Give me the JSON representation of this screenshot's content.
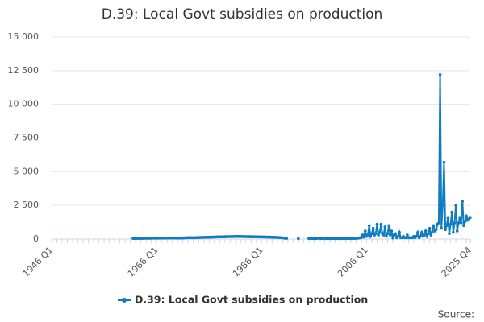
{
  "chart_data": {
    "type": "line",
    "title": "D.39: Local Govt subsidies on production",
    "source": "Source:",
    "categories": [
      "1946 Q1",
      null,
      null,
      null,
      null,
      null,
      null,
      null,
      null,
      null,
      null,
      null,
      null,
      null,
      null,
      null,
      null,
      null,
      null,
      null,
      null,
      null,
      null,
      null,
      null,
      null,
      null,
      null,
      null,
      null,
      null,
      null,
      null,
      null,
      null,
      null,
      null,
      null,
      null,
      null,
      null,
      null,
      null,
      null,
      null,
      null,
      null,
      null,
      null,
      null,
      null,
      null,
      null,
      null,
      null,
      null,
      null,
      null,
      null,
      null,
      null,
      null,
      null,
      null,
      null,
      null,
      null,
      null,
      null,
      null,
      null,
      null,
      null,
      null,
      null,
      null,
      null,
      null,
      null,
      null,
      "1966 Q1",
      null,
      null,
      null,
      null,
      null,
      null,
      null,
      null,
      null,
      null,
      null,
      null,
      null,
      null,
      null,
      null,
      null,
      null,
      null,
      null,
      null,
      null,
      null,
      null,
      null,
      null,
      null,
      null,
      null,
      null,
      null,
      null,
      null,
      null,
      null,
      null,
      null,
      null,
      null,
      null,
      null,
      null,
      null,
      null,
      null,
      null,
      null,
      null,
      null,
      null,
      null,
      null,
      null,
      null,
      null,
      null,
      null,
      null,
      null,
      null,
      null,
      null,
      null,
      null,
      null,
      null,
      null,
      null,
      null,
      null,
      null,
      null,
      null,
      null,
      null,
      null,
      null,
      null,
      null,
      "1986 Q1",
      null,
      null,
      null,
      null,
      null,
      null,
      null,
      null,
      null,
      null,
      null,
      null,
      null,
      null,
      null,
      null,
      null,
      null,
      null,
      null,
      null,
      null,
      null,
      null,
      null,
      null,
      null,
      null,
      null,
      null,
      null,
      null,
      null,
      null,
      null,
      null,
      null,
      null,
      null,
      null,
      null,
      null,
      null,
      null,
      null,
      null,
      null,
      null,
      null,
      null,
      null,
      null,
      null,
      null,
      null,
      null,
      null,
      null,
      null,
      null,
      null,
      null,
      null,
      null,
      null,
      null,
      null,
      null,
      null,
      null,
      null,
      null,
      null,
      null,
      null,
      null,
      null,
      null,
      null,
      "2006 Q1",
      null,
      null,
      null,
      null,
      null,
      null,
      null,
      null,
      null,
      null,
      null,
      null,
      null,
      null,
      null,
      null,
      null,
      null,
      null,
      null,
      null,
      null,
      null,
      null,
      null,
      null,
      null,
      null,
      null,
      null,
      null,
      null,
      null,
      null,
      null,
      null,
      null,
      null,
      null,
      null,
      null,
      null,
      null,
      null,
      null,
      null,
      null,
      null,
      null,
      null,
      null,
      null,
      null,
      null,
      null,
      null,
      null,
      null,
      null,
      null,
      null,
      null,
      null,
      null,
      null,
      null,
      null,
      null,
      null,
      null,
      null,
      null,
      null,
      null,
      null,
      null,
      null,
      null,
      "2025 Q4"
    ],
    "series": [
      {
        "name": "D.39: Local Govt subsidies on production",
        "color": "#0e7cc0",
        "values": [
          null,
          null,
          null,
          null,
          null,
          null,
          null,
          null,
          null,
          null,
          null,
          null,
          null,
          null,
          null,
          null,
          null,
          null,
          null,
          null,
          null,
          null,
          null,
          null,
          null,
          null,
          null,
          null,
          null,
          null,
          null,
          null,
          null,
          null,
          null,
          null,
          null,
          null,
          null,
          null,
          null,
          null,
          null,
          null,
          null,
          null,
          null,
          null,
          null,
          null,
          null,
          null,
          null,
          null,
          null,
          null,
          null,
          null,
          null,
          null,
          null,
          null,
          50,
          50,
          50,
          50,
          55,
          55,
          55,
          55,
          55,
          60,
          60,
          60,
          60,
          60,
          60,
          65,
          65,
          65,
          65,
          65,
          70,
          70,
          70,
          70,
          70,
          75,
          75,
          75,
          75,
          75,
          80,
          80,
          80,
          75,
          70,
          70,
          75,
          80,
          80,
          85,
          90,
          95,
          100,
          100,
          100,
          95,
          95,
          100,
          100,
          105,
          110,
          115,
          120,
          125,
          125,
          130,
          130,
          135,
          140,
          140,
          145,
          150,
          150,
          155,
          160,
          160,
          165,
          165,
          170,
          170,
          175,
          175,
          180,
          180,
          180,
          185,
          185,
          185,
          190,
          190,
          190,
          190,
          190,
          185,
          185,
          185,
          180,
          180,
          175,
          175,
          175,
          170,
          170,
          170,
          165,
          165,
          160,
          160,
          160,
          155,
          155,
          150,
          150,
          150,
          145,
          140,
          135,
          130,
          130,
          125,
          120,
          115,
          110,
          100,
          90,
          80,
          60,
          50,
          null,
          null,
          null,
          null,
          null,
          null,
          null,
          null,
          30,
          null,
          null,
          null,
          null,
          null,
          null,
          null,
          40,
          40,
          40,
          40,
          40,
          40,
          40,
          null,
          40,
          40,
          40,
          null,
          40,
          40,
          40,
          40,
          40,
          40,
          40,
          40,
          40,
          40,
          40,
          40,
          40,
          40,
          40,
          40,
          40,
          45,
          45,
          45,
          50,
          50,
          50,
          50,
          55,
          60,
          70,
          100,
          100,
          300,
          150,
          600,
          200,
          300,
          1000,
          200,
          400,
          800,
          300,
          400,
          1100,
          300,
          500,
          1100,
          400,
          300,
          900,
          200,
          400,
          1000,
          300,
          600,
          100,
          300,
          400,
          100,
          200,
          500,
          100,
          100,
          200,
          100,
          100,
          300,
          100,
          100,
          100,
          100,
          200,
          100,
          200,
          500,
          100,
          200,
          500,
          200,
          300,
          600,
          200,
          400,
          800,
          300,
          500,
          1000,
          600,
          700,
          1100,
          1200,
          12200,
          800,
          2500,
          5700,
          700,
          1000,
          1600,
          400,
          1100,
          2000,
          500,
          1200,
          2500,
          600,
          1200,
          1600,
          1200,
          2800,
          1000,
          1300,
          1700,
          1400,
          1500,
          1600
        ]
      }
    ],
    "ylim": [
      0,
      15000
    ],
    "yticks": [
      0,
      {
        "value": 2500,
        "label": "2 500"
      },
      {
        "value": 5000,
        "label": "5 000"
      },
      {
        "value": 7500,
        "label": "7 500"
      },
      {
        "value": 10000,
        "label": "10 000"
      },
      {
        "value": 12500,
        "label": "12 500"
      },
      {
        "value": 15000,
        "label": "15 000"
      }
    ],
    "grid": true
  }
}
